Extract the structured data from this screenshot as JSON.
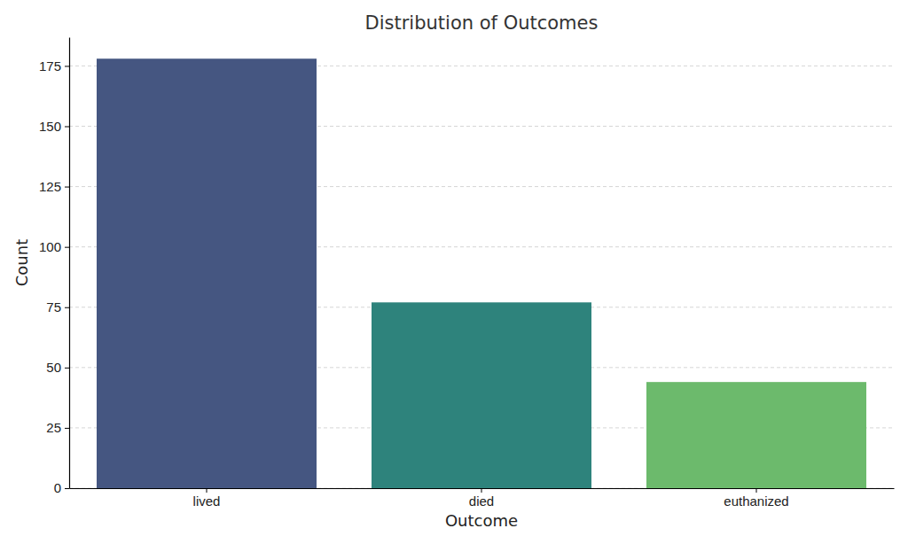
{
  "chart_data": {
    "type": "bar",
    "title": "Distribution of Outcomes",
    "x_label": "Outcome",
    "y_label": "Count",
    "categories": [
      "lived",
      "died",
      "euthanized"
    ],
    "values": [
      178,
      77,
      44
    ],
    "colors": [
      "#455681",
      "#2e837c",
      "#6cba6c"
    ],
    "ylim": [
      0,
      186.9
    ],
    "yticks": [
      0,
      25,
      50,
      75,
      100,
      125,
      150,
      175
    ],
    "grid": true
  }
}
